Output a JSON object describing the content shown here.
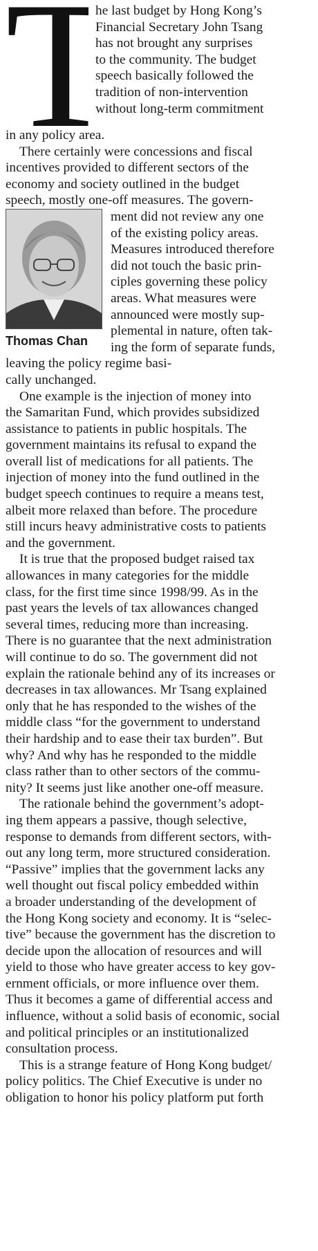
{
  "article": {
    "drop_cap": "T",
    "paragraph_1": [
      "he last budget by Hong Kong’s",
      "Financial Secretary John Tsang",
      "has not brought any surprises",
      "to the community. The budget",
      "speech basically followed the",
      "tradition of non-intervention",
      "without long-term commitment",
      "in any policy area."
    ],
    "paragraph_2_top": [
      "There certainly were concessions and fiscal",
      "incentives provided to different sectors of the",
      "economy and society outlined in the budget",
      "speech, mostly one-off measures. The govern-"
    ],
    "paragraph_2_side": [
      "ment did not review any one",
      "of the existing policy areas.",
      "Measures introduced therefore",
      "did not touch the basic prin-",
      "ciples governing these policy",
      "areas. What measures were",
      "announced were mostly sup-",
      "plemental in nature, often tak-",
      "ing the form of separate funds,",
      "leaving the policy regime basi-",
      "cally unchanged."
    ],
    "byline": "Thomas Chan",
    "paragraph_3": [
      "One example is the injection of money into",
      "the Samaritan Fund, which provides subsidized",
      "assistance to patients in public hospitals. The",
      "government maintains its refusal to expand the",
      "overall list of medications for all patients. The",
      "injection of money into the fund outlined in the",
      "budget speech continues to require a means test,",
      "albeit more relaxed than before. The procedure",
      "still incurs heavy administrative costs to patients",
      "and the government."
    ],
    "paragraph_4": [
      "It is true that the proposed budget raised tax",
      "allowances in many categories for the middle",
      "class, for the first time since 1998/99. As in the",
      "past years the levels of tax allowances changed",
      "several times, reducing more than increasing.",
      "There is no guarantee that the next administration",
      "will continue to do so. The government did not",
      "explain the rationale behind any of its increases or",
      "decreases in tax allowances. Mr Tsang explained",
      "only that he has responded to the wishes of the",
      "middle class “for the government to understand",
      "their hardship and to ease their tax burden”. But",
      "why? And why has he responded to the middle",
      "class rather than to other sectors of the commu-",
      "nity? It seems just like another one-off measure."
    ],
    "paragraph_5": [
      "The rationale behind the government’s adopt-",
      "ing them appears a passive, though selective,",
      "response to demands from different sectors, with-",
      "out any long term, more structured consideration.",
      "“Passive” implies that the government lacks any",
      "well thought out fiscal policy embedded within",
      "a broader understanding of the development of",
      "the Hong Kong society and economy. It is “selec-",
      "tive” because the government has the discretion to",
      "decide upon the allocation of resources and will",
      "yield to those who have greater access to key gov-",
      "ernment officials, or more influence over them.",
      "Thus it becomes a game of differential access and",
      "influence, without a solid basis of economic, social",
      "and political principles or an institutionalized",
      "consultation process."
    ],
    "paragraph_6": [
      "This is a strange feature of Hong Kong budget/",
      "policy politics. The Chief Executive is under no",
      "obligation to honor his policy platform put forth"
    ]
  }
}
